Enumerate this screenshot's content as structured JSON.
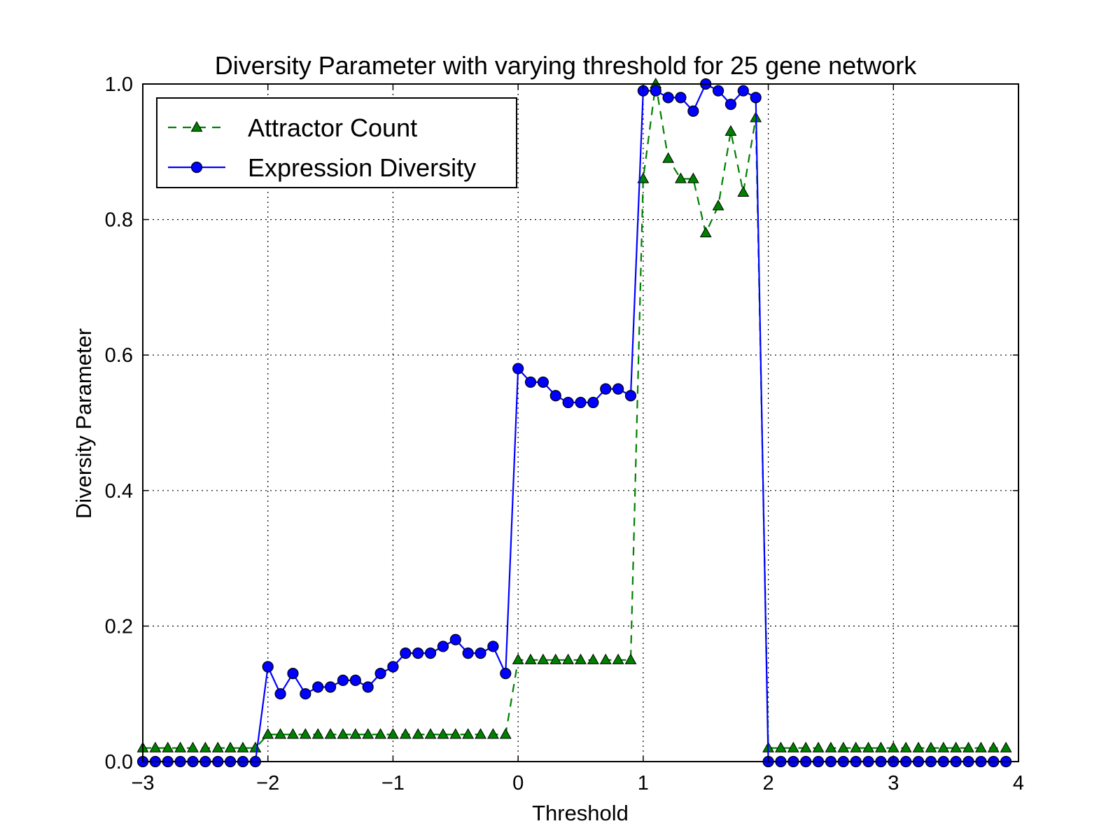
{
  "chart_data": {
    "type": "line",
    "title": "Diversity Parameter with varying threshold for 25 gene network",
    "xlabel": "Threshold",
    "ylabel": "Diversity Parameter",
    "xlim": [
      -3,
      4
    ],
    "ylim": [
      0,
      1
    ],
    "xticks": [
      -3,
      -2,
      -1,
      0,
      1,
      2,
      3,
      4
    ],
    "xtick_labels": [
      "−3",
      "−2",
      "−1",
      "0",
      "1",
      "2",
      "3",
      "4"
    ],
    "yticks": [
      0,
      0.2,
      0.4,
      0.6,
      0.8,
      1.0
    ],
    "ytick_labels": [
      "0.0",
      "0.2",
      "0.4",
      "0.6",
      "0.8",
      "1.0"
    ],
    "grid": true,
    "legend_position": "top-left",
    "series": [
      {
        "name": "Attractor Count",
        "color": "#008000",
        "line_style": "dashed",
        "marker": "triangle",
        "x": [
          -3.0,
          -2.9,
          -2.8,
          -2.7,
          -2.6,
          -2.5,
          -2.4,
          -2.3,
          -2.2,
          -2.1,
          -2.0,
          -1.9,
          -1.8,
          -1.7,
          -1.6,
          -1.5,
          -1.4,
          -1.3,
          -1.2,
          -1.1,
          -1.0,
          -0.9,
          -0.8,
          -0.7,
          -0.6,
          -0.5,
          -0.4,
          -0.3,
          -0.2,
          -0.1,
          0.0,
          0.1,
          0.2,
          0.3,
          0.4,
          0.5,
          0.6,
          0.7,
          0.8,
          0.9,
          1.0,
          1.1,
          1.2,
          1.3,
          1.4,
          1.5,
          1.6,
          1.7,
          1.8,
          1.9,
          2.0,
          2.1,
          2.2,
          2.3,
          2.4,
          2.5,
          2.6,
          2.7,
          2.8,
          2.9,
          3.0,
          3.1,
          3.2,
          3.3,
          3.4,
          3.5,
          3.6,
          3.7,
          3.8,
          3.9
        ],
        "values": [
          0.02,
          0.02,
          0.02,
          0.02,
          0.02,
          0.02,
          0.02,
          0.02,
          0.02,
          0.02,
          0.04,
          0.04,
          0.04,
          0.04,
          0.04,
          0.04,
          0.04,
          0.04,
          0.04,
          0.04,
          0.04,
          0.04,
          0.04,
          0.04,
          0.04,
          0.04,
          0.04,
          0.04,
          0.04,
          0.04,
          0.15,
          0.15,
          0.15,
          0.15,
          0.15,
          0.15,
          0.15,
          0.15,
          0.15,
          0.15,
          0.86,
          1.0,
          0.89,
          0.86,
          0.86,
          0.78,
          0.82,
          0.93,
          0.84,
          0.95,
          0.02,
          0.02,
          0.02,
          0.02,
          0.02,
          0.02,
          0.02,
          0.02,
          0.02,
          0.02,
          0.02,
          0.02,
          0.02,
          0.02,
          0.02,
          0.02,
          0.02,
          0.02,
          0.02,
          0.02
        ]
      },
      {
        "name": "Expression Diversity",
        "color": "#0000ff",
        "line_style": "solid",
        "marker": "circle",
        "x": [
          -3.0,
          -2.9,
          -2.8,
          -2.7,
          -2.6,
          -2.5,
          -2.4,
          -2.3,
          -2.2,
          -2.1,
          -2.0,
          -1.9,
          -1.8,
          -1.7,
          -1.6,
          -1.5,
          -1.4,
          -1.3,
          -1.2,
          -1.1,
          -1.0,
          -0.9,
          -0.8,
          -0.7,
          -0.6,
          -0.5,
          -0.4,
          -0.3,
          -0.2,
          -0.1,
          0.0,
          0.1,
          0.2,
          0.3,
          0.4,
          0.5,
          0.6,
          0.7,
          0.8,
          0.9,
          1.0,
          1.1,
          1.2,
          1.3,
          1.4,
          1.5,
          1.6,
          1.7,
          1.8,
          1.9,
          2.0,
          2.1,
          2.2,
          2.3,
          2.4,
          2.5,
          2.6,
          2.7,
          2.8,
          2.9,
          3.0,
          3.1,
          3.2,
          3.3,
          3.4,
          3.5,
          3.6,
          3.7,
          3.8,
          3.9
        ],
        "values": [
          0.0,
          0.0,
          0.0,
          0.0,
          0.0,
          0.0,
          0.0,
          0.0,
          0.0,
          0.0,
          0.14,
          0.1,
          0.13,
          0.1,
          0.11,
          0.11,
          0.12,
          0.12,
          0.11,
          0.13,
          0.14,
          0.16,
          0.16,
          0.16,
          0.17,
          0.18,
          0.16,
          0.16,
          0.17,
          0.13,
          0.58,
          0.56,
          0.56,
          0.54,
          0.53,
          0.53,
          0.53,
          0.55,
          0.55,
          0.54,
          0.99,
          0.99,
          0.98,
          0.98,
          0.96,
          1.0,
          0.99,
          0.97,
          0.99,
          0.98,
          0.0,
          0.0,
          0.0,
          0.0,
          0.0,
          0.0,
          0.0,
          0.0,
          0.0,
          0.0,
          0.0,
          0.0,
          0.0,
          0.0,
          0.0,
          0.0,
          0.0,
          0.0,
          0.0,
          0.0
        ]
      }
    ]
  }
}
